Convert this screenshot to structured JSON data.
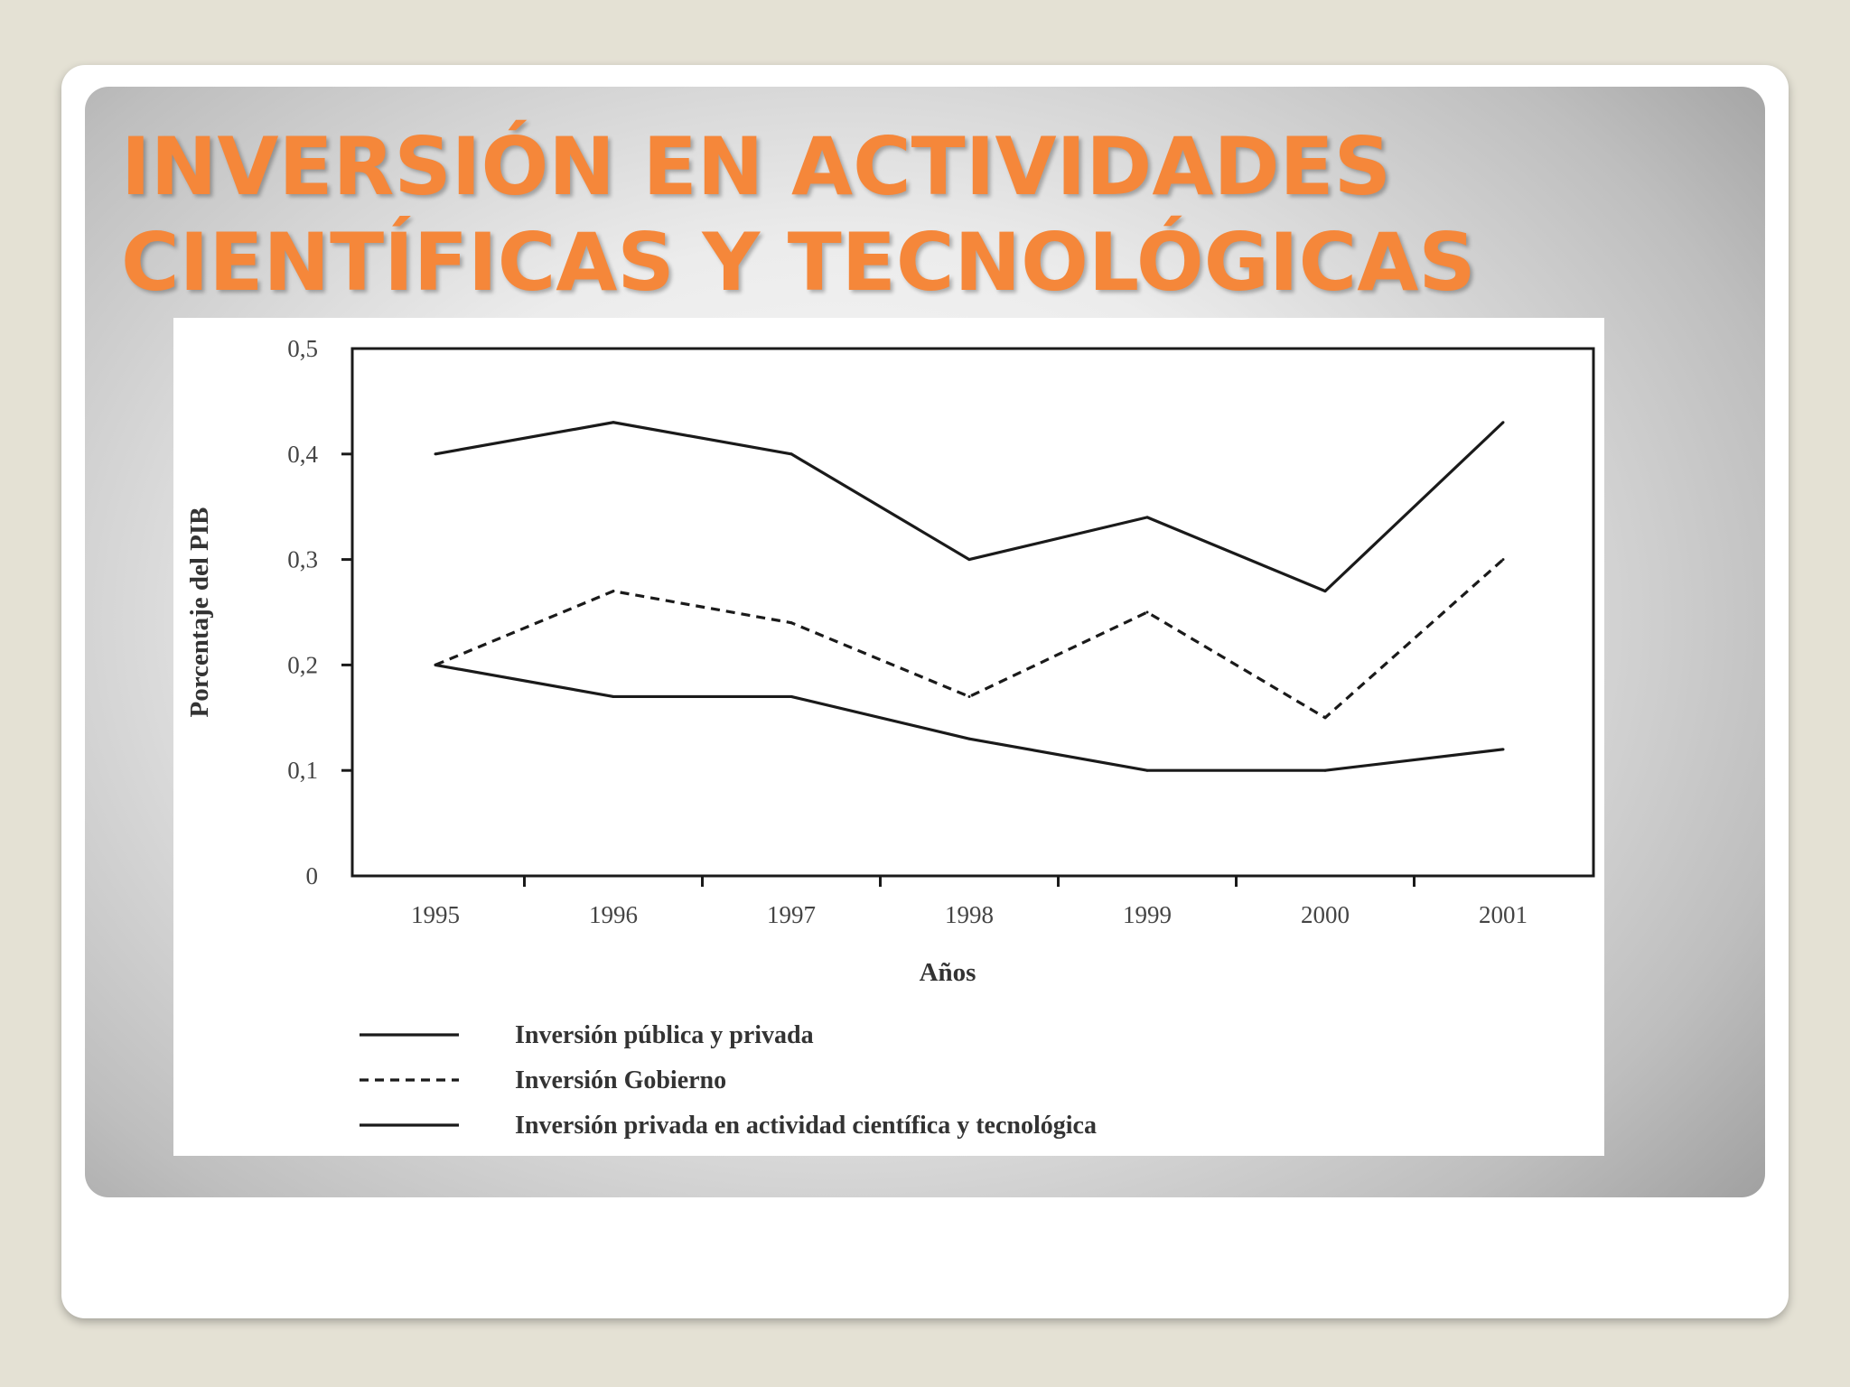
{
  "slide": {
    "title_line1": "INVERSIÓN EN ACTIVIDADES",
    "title_line2": "CIENTÍFICAS Y TECNOLÓGICAS"
  },
  "colors": {
    "title": "#f5873a",
    "background": "#e4e1d4"
  },
  "chart_data": {
    "type": "line",
    "title": "",
    "xlabel": "Años",
    "ylabel": "Porcentaje del PIB",
    "categories": [
      "1995",
      "1996",
      "1997",
      "1998",
      "1999",
      "2000",
      "2001"
    ],
    "ylim": [
      0,
      0.5
    ],
    "yticks": [
      "0",
      "0,1",
      "0,2",
      "0,3",
      "0,4",
      "0,5"
    ],
    "grid": false,
    "legend_position": "bottom",
    "series": [
      {
        "name": "Inversión pública y privada",
        "style": "solid",
        "values": [
          0.4,
          0.43,
          0.4,
          0.3,
          0.34,
          0.27,
          0.43
        ]
      },
      {
        "name": "Inversión Gobierno",
        "style": "dashed",
        "values": [
          0.2,
          0.27,
          0.24,
          0.17,
          0.25,
          0.15,
          0.3
        ]
      },
      {
        "name": "Inversión privada en actividad científica y tecnológica",
        "style": "solid",
        "values": [
          0.2,
          0.17,
          0.17,
          0.13,
          0.1,
          0.1,
          0.12
        ]
      }
    ]
  }
}
